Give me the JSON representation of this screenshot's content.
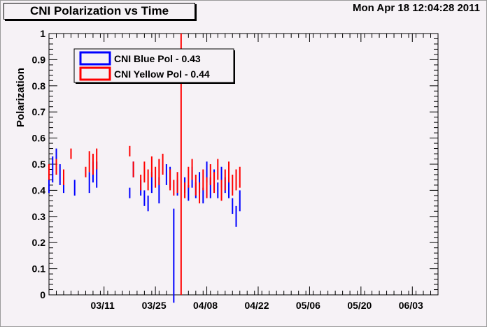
{
  "title": "CNI Polarization vs Time",
  "timestamp": "Mon Apr 18 12:04:28 2011",
  "chart_data": {
    "type": "scatter",
    "title": "CNI Polarization vs Time",
    "xlabel": "",
    "ylabel": "Polarization",
    "ylim": [
      0,
      1
    ],
    "yticks": [
      "0",
      "0.1",
      "0.2",
      "0.3",
      "0.4",
      "0.5",
      "0.6",
      "0.7",
      "0.8",
      "0.9",
      "1"
    ],
    "xlim": [
      "2011-02-24",
      "2011-06-10"
    ],
    "xticks": [
      "03/11",
      "03/25",
      "04/08",
      "04/22",
      "05/06",
      "05/20",
      "06/03"
    ],
    "grid": false,
    "legend": [
      {
        "name": "CNI Blue Pol -  0.43",
        "color": "#0000ff"
      },
      {
        "name": "CNI Yellow Pol -  0.44",
        "color": "#ff0000"
      }
    ],
    "marker_line": {
      "date": "2011-04-01",
      "color": "#ff0000"
    },
    "series": [
      {
        "name": "CNI Blue Pol -  0.43",
        "color": "#0000ff",
        "points": [
          {
            "x": "2011-02-24",
            "y": 0.43,
            "err": 0.04
          },
          {
            "x": "2011-02-25",
            "y": 0.48,
            "err": 0.05
          },
          {
            "x": "2011-02-26",
            "y": 0.51,
            "err": 0.05
          },
          {
            "x": "2011-02-27",
            "y": 0.46,
            "err": 0.04
          },
          {
            "x": "2011-02-28",
            "y": 0.42,
            "err": 0.03
          },
          {
            "x": "2011-03-03",
            "y": 0.41,
            "err": 0.03
          },
          {
            "x": "2011-03-07",
            "y": 0.43,
            "err": 0.04
          },
          {
            "x": "2011-03-08",
            "y": 0.47,
            "err": 0.04
          },
          {
            "x": "2011-03-09",
            "y": 0.46,
            "err": 0.05
          },
          {
            "x": "2011-03-18",
            "y": 0.39,
            "err": 0.02
          },
          {
            "x": "2011-03-19",
            "y": 0.48,
            "err": 0.03
          },
          {
            "x": "2011-03-21",
            "y": 0.41,
            "err": 0.03
          },
          {
            "x": "2011-03-22",
            "y": 0.37,
            "err": 0.03
          },
          {
            "x": "2011-03-23",
            "y": 0.35,
            "err": 0.03
          },
          {
            "x": "2011-03-24",
            "y": 0.43,
            "err": 0.04
          },
          {
            "x": "2011-03-26",
            "y": 0.4,
            "err": 0.05
          },
          {
            "x": "2011-03-28",
            "y": 0.46,
            "err": 0.04
          },
          {
            "x": "2011-03-29",
            "y": 0.45,
            "err": 0.04
          },
          {
            "x": "2011-03-30",
            "y": 0.15,
            "err": 0.18
          },
          {
            "x": "2011-03-31",
            "y": 0.41,
            "err": 0.03
          },
          {
            "x": "2011-04-02",
            "y": 0.42,
            "err": 0.03
          },
          {
            "x": "2011-04-03",
            "y": 0.39,
            "err": 0.03
          },
          {
            "x": "2011-04-04",
            "y": 0.45,
            "err": 0.04
          },
          {
            "x": "2011-04-05",
            "y": 0.4,
            "err": 0.03
          },
          {
            "x": "2011-04-06",
            "y": 0.43,
            "err": 0.04
          },
          {
            "x": "2011-04-07",
            "y": 0.38,
            "err": 0.03
          },
          {
            "x": "2011-04-08",
            "y": 0.47,
            "err": 0.04
          },
          {
            "x": "2011-04-09",
            "y": 0.41,
            "err": 0.04
          },
          {
            "x": "2011-04-10",
            "y": 0.44,
            "err": 0.04
          },
          {
            "x": "2011-04-11",
            "y": 0.4,
            "err": 0.03
          },
          {
            "x": "2011-04-12",
            "y": 0.45,
            "err": 0.04
          },
          {
            "x": "2011-04-13",
            "y": 0.42,
            "err": 0.03
          },
          {
            "x": "2011-04-14",
            "y": 0.41,
            "err": 0.04
          },
          {
            "x": "2011-04-15",
            "y": 0.34,
            "err": 0.03
          },
          {
            "x": "2011-04-16",
            "y": 0.3,
            "err": 0.04
          },
          {
            "x": "2011-04-17",
            "y": 0.36,
            "err": 0.04
          }
        ]
      },
      {
        "name": "CNI Yellow Pol -  0.44",
        "color": "#ff0000",
        "points": [
          {
            "x": "2011-02-24",
            "y": 0.47,
            "err": 0.03
          },
          {
            "x": "2011-02-26",
            "y": 0.49,
            "err": 0.03
          },
          {
            "x": "2011-02-28",
            "y": 0.45,
            "err": 0.03
          },
          {
            "x": "2011-03-02",
            "y": 0.54,
            "err": 0.02
          },
          {
            "x": "2011-03-06",
            "y": 0.47,
            "err": 0.02
          },
          {
            "x": "2011-03-07",
            "y": 0.51,
            "err": 0.04
          },
          {
            "x": "2011-03-08",
            "y": 0.5,
            "err": 0.04
          },
          {
            "x": "2011-03-09",
            "y": 0.52,
            "err": 0.04
          },
          {
            "x": "2011-03-18",
            "y": 0.55,
            "err": 0.02
          },
          {
            "x": "2011-03-19",
            "y": 0.48,
            "err": 0.03
          },
          {
            "x": "2011-03-21",
            "y": 0.43,
            "err": 0.03
          },
          {
            "x": "2011-03-22",
            "y": 0.47,
            "err": 0.04
          },
          {
            "x": "2011-03-23",
            "y": 0.44,
            "err": 0.04
          },
          {
            "x": "2011-03-24",
            "y": 0.49,
            "err": 0.04
          },
          {
            "x": "2011-03-25",
            "y": 0.45,
            "err": 0.04
          },
          {
            "x": "2011-03-26",
            "y": 0.47,
            "err": 0.05
          },
          {
            "x": "2011-03-27",
            "y": 0.5,
            "err": 0.04
          },
          {
            "x": "2011-03-29",
            "y": 0.44,
            "err": 0.04
          },
          {
            "x": "2011-03-30",
            "y": 0.41,
            "err": 0.03
          },
          {
            "x": "2011-03-31",
            "y": 0.43,
            "err": 0.04
          },
          {
            "x": "2011-04-02",
            "y": 0.4,
            "err": 0.03
          },
          {
            "x": "2011-04-03",
            "y": 0.45,
            "err": 0.04
          },
          {
            "x": "2011-04-04",
            "y": 0.48,
            "err": 0.04
          },
          {
            "x": "2011-04-05",
            "y": 0.42,
            "err": 0.04
          },
          {
            "x": "2011-04-06",
            "y": 0.39,
            "err": 0.04
          },
          {
            "x": "2011-04-07",
            "y": 0.44,
            "err": 0.04
          },
          {
            "x": "2011-04-08",
            "y": 0.41,
            "err": 0.04
          },
          {
            "x": "2011-04-09",
            "y": 0.46,
            "err": 0.04
          },
          {
            "x": "2011-04-10",
            "y": 0.43,
            "err": 0.04
          },
          {
            "x": "2011-04-11",
            "y": 0.48,
            "err": 0.04
          },
          {
            "x": "2011-04-12",
            "y": 0.4,
            "err": 0.04
          },
          {
            "x": "2011-04-13",
            "y": 0.44,
            "err": 0.04
          },
          {
            "x": "2011-04-14",
            "y": 0.47,
            "err": 0.04
          },
          {
            "x": "2011-04-15",
            "y": 0.42,
            "err": 0.04
          },
          {
            "x": "2011-04-16",
            "y": 0.44,
            "err": 0.04
          },
          {
            "x": "2011-04-17",
            "y": 0.45,
            "err": 0.04
          }
        ]
      }
    ]
  }
}
